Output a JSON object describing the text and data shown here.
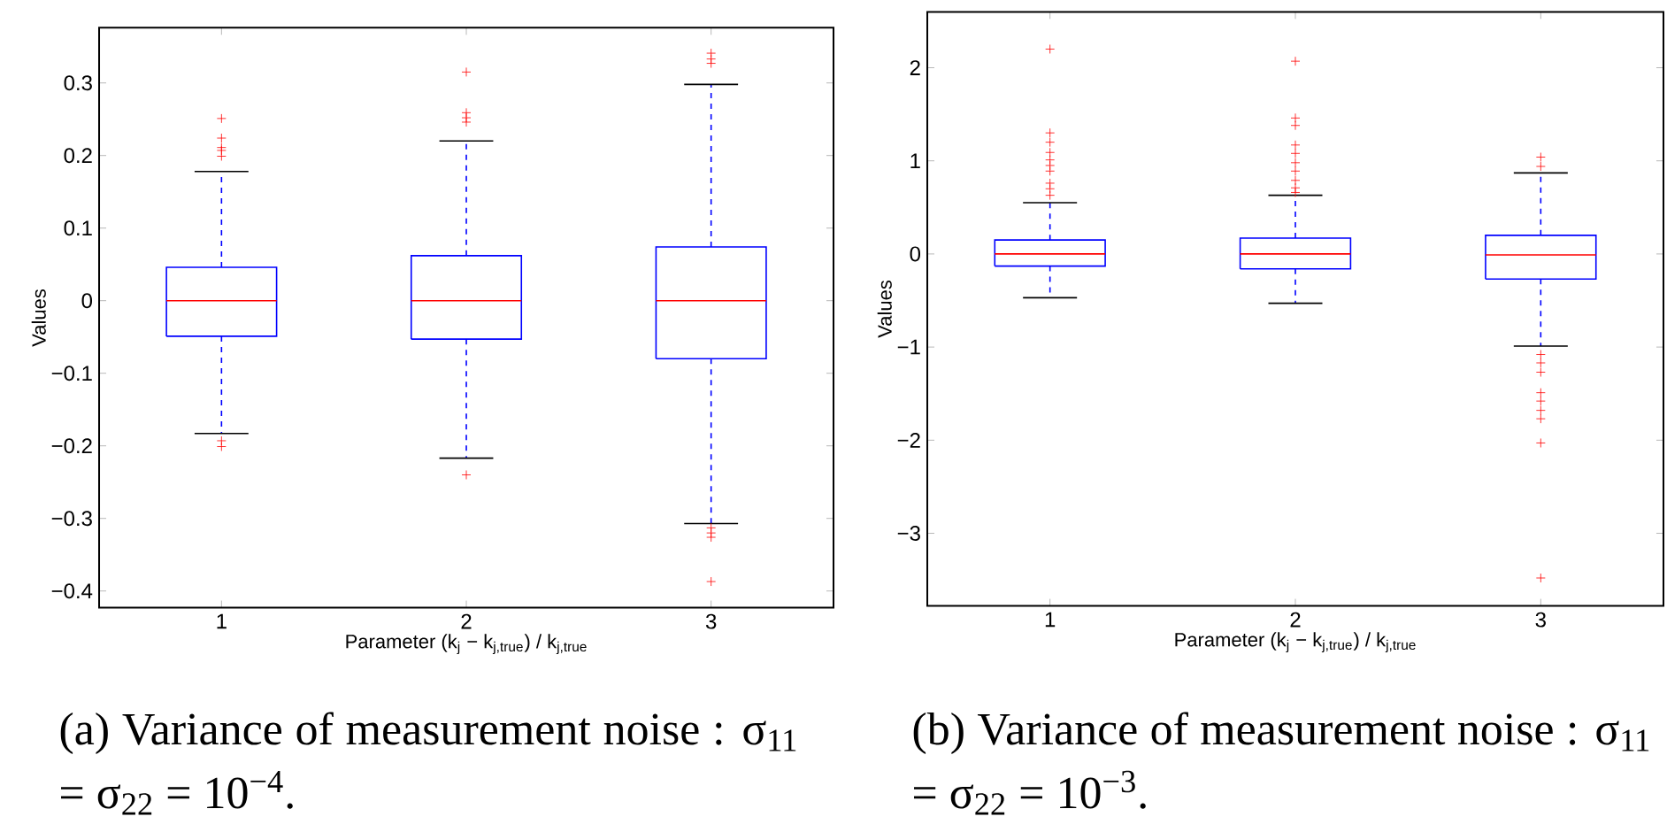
{
  "chart_data": [
    {
      "type": "box",
      "xlabel": "Parameter  (k$_{j}$ − k$_{j,true}$) / k$_{j,true}$",
      "ylabel": "Values",
      "categories": [
        "1",
        "2",
        "3"
      ],
      "color": "#0000ff",
      "ylim": [
        -0.423,
        0.376
      ],
      "yticks": [
        {
          "value": -0.4,
          "label": "−0.4"
        },
        {
          "value": -0.3,
          "label": "−0.3"
        },
        {
          "value": -0.2,
          "label": "−0.2"
        },
        {
          "value": -0.1,
          "label": "−0.1"
        },
        0,
        0.1,
        0.2,
        0.3
      ],
      "boxes": [
        {
          "low": -0.183,
          "q1": -0.049,
          "median": 0.0,
          "q3": 0.046,
          "high": 0.178,
          "outliers": [
            0.251,
            0.224,
            0.211,
            0.207,
            0.199,
            -0.193,
            -0.201
          ]
        },
        {
          "low": -0.217,
          "q1": -0.053,
          "median": 0.0,
          "q3": 0.062,
          "high": 0.22,
          "outliers": [
            0.315,
            0.259,
            0.252,
            0.246,
            -0.24
          ]
        },
        {
          "low": -0.307,
          "q1": -0.08,
          "median": 0.0,
          "q3": 0.074,
          "high": 0.298,
          "outliers": [
            0.341,
            0.333,
            0.327,
            -0.313,
            -0.32,
            -0.326,
            -0.387
          ]
        }
      ],
      "annotations": [
        "(a) Variance of measurement noise : σ$_{11}$ = σ$_{22}$ = 10$^{−4}$."
      ]
    },
    {
      "type": "box",
      "xlabel": "Parameter  (k$_{j}$ − k$_{j,true}$) / k$_{j,true}$",
      "ylabel": "Values",
      "categories": [
        "1",
        "2",
        "3"
      ],
      "color": "#0000ff",
      "ylim": [
        -3.78,
        2.6
      ],
      "yticks": [
        {
          "value": -3,
          "label": "−3"
        },
        {
          "value": -2,
          "label": "−2"
        },
        {
          "value": -1,
          "label": "−1"
        },
        0,
        1,
        2
      ],
      "boxes": [
        {
          "low": -0.47,
          "q1": -0.13,
          "median": 0.0,
          "q3": 0.15,
          "high": 0.55,
          "outliers": [
            2.2,
            1.3,
            1.2,
            1.09,
            1.01,
            0.95,
            0.89,
            0.76,
            0.7,
            0.63
          ]
        },
        {
          "low": -0.53,
          "q1": -0.16,
          "median": 0.0,
          "q3": 0.17,
          "high": 0.63,
          "outliers": [
            2.07,
            1.46,
            1.38,
            1.17,
            1.08,
            0.98,
            0.89,
            0.79,
            0.71,
            0.66
          ]
        },
        {
          "low": -0.99,
          "q1": -0.27,
          "median": -0.01,
          "q3": 0.2,
          "high": 0.87,
          "outliers": [
            1.04,
            0.94,
            -1.08,
            -1.17,
            -1.27,
            -1.49,
            -1.58,
            -1.68,
            -1.77,
            -2.03,
            -3.48
          ]
        }
      ],
      "annotations": [
        "(b) Variance of measurement noise : σ$_{11}$ = σ$_{22}$ = 10$^{−3}$."
      ]
    }
  ]
}
